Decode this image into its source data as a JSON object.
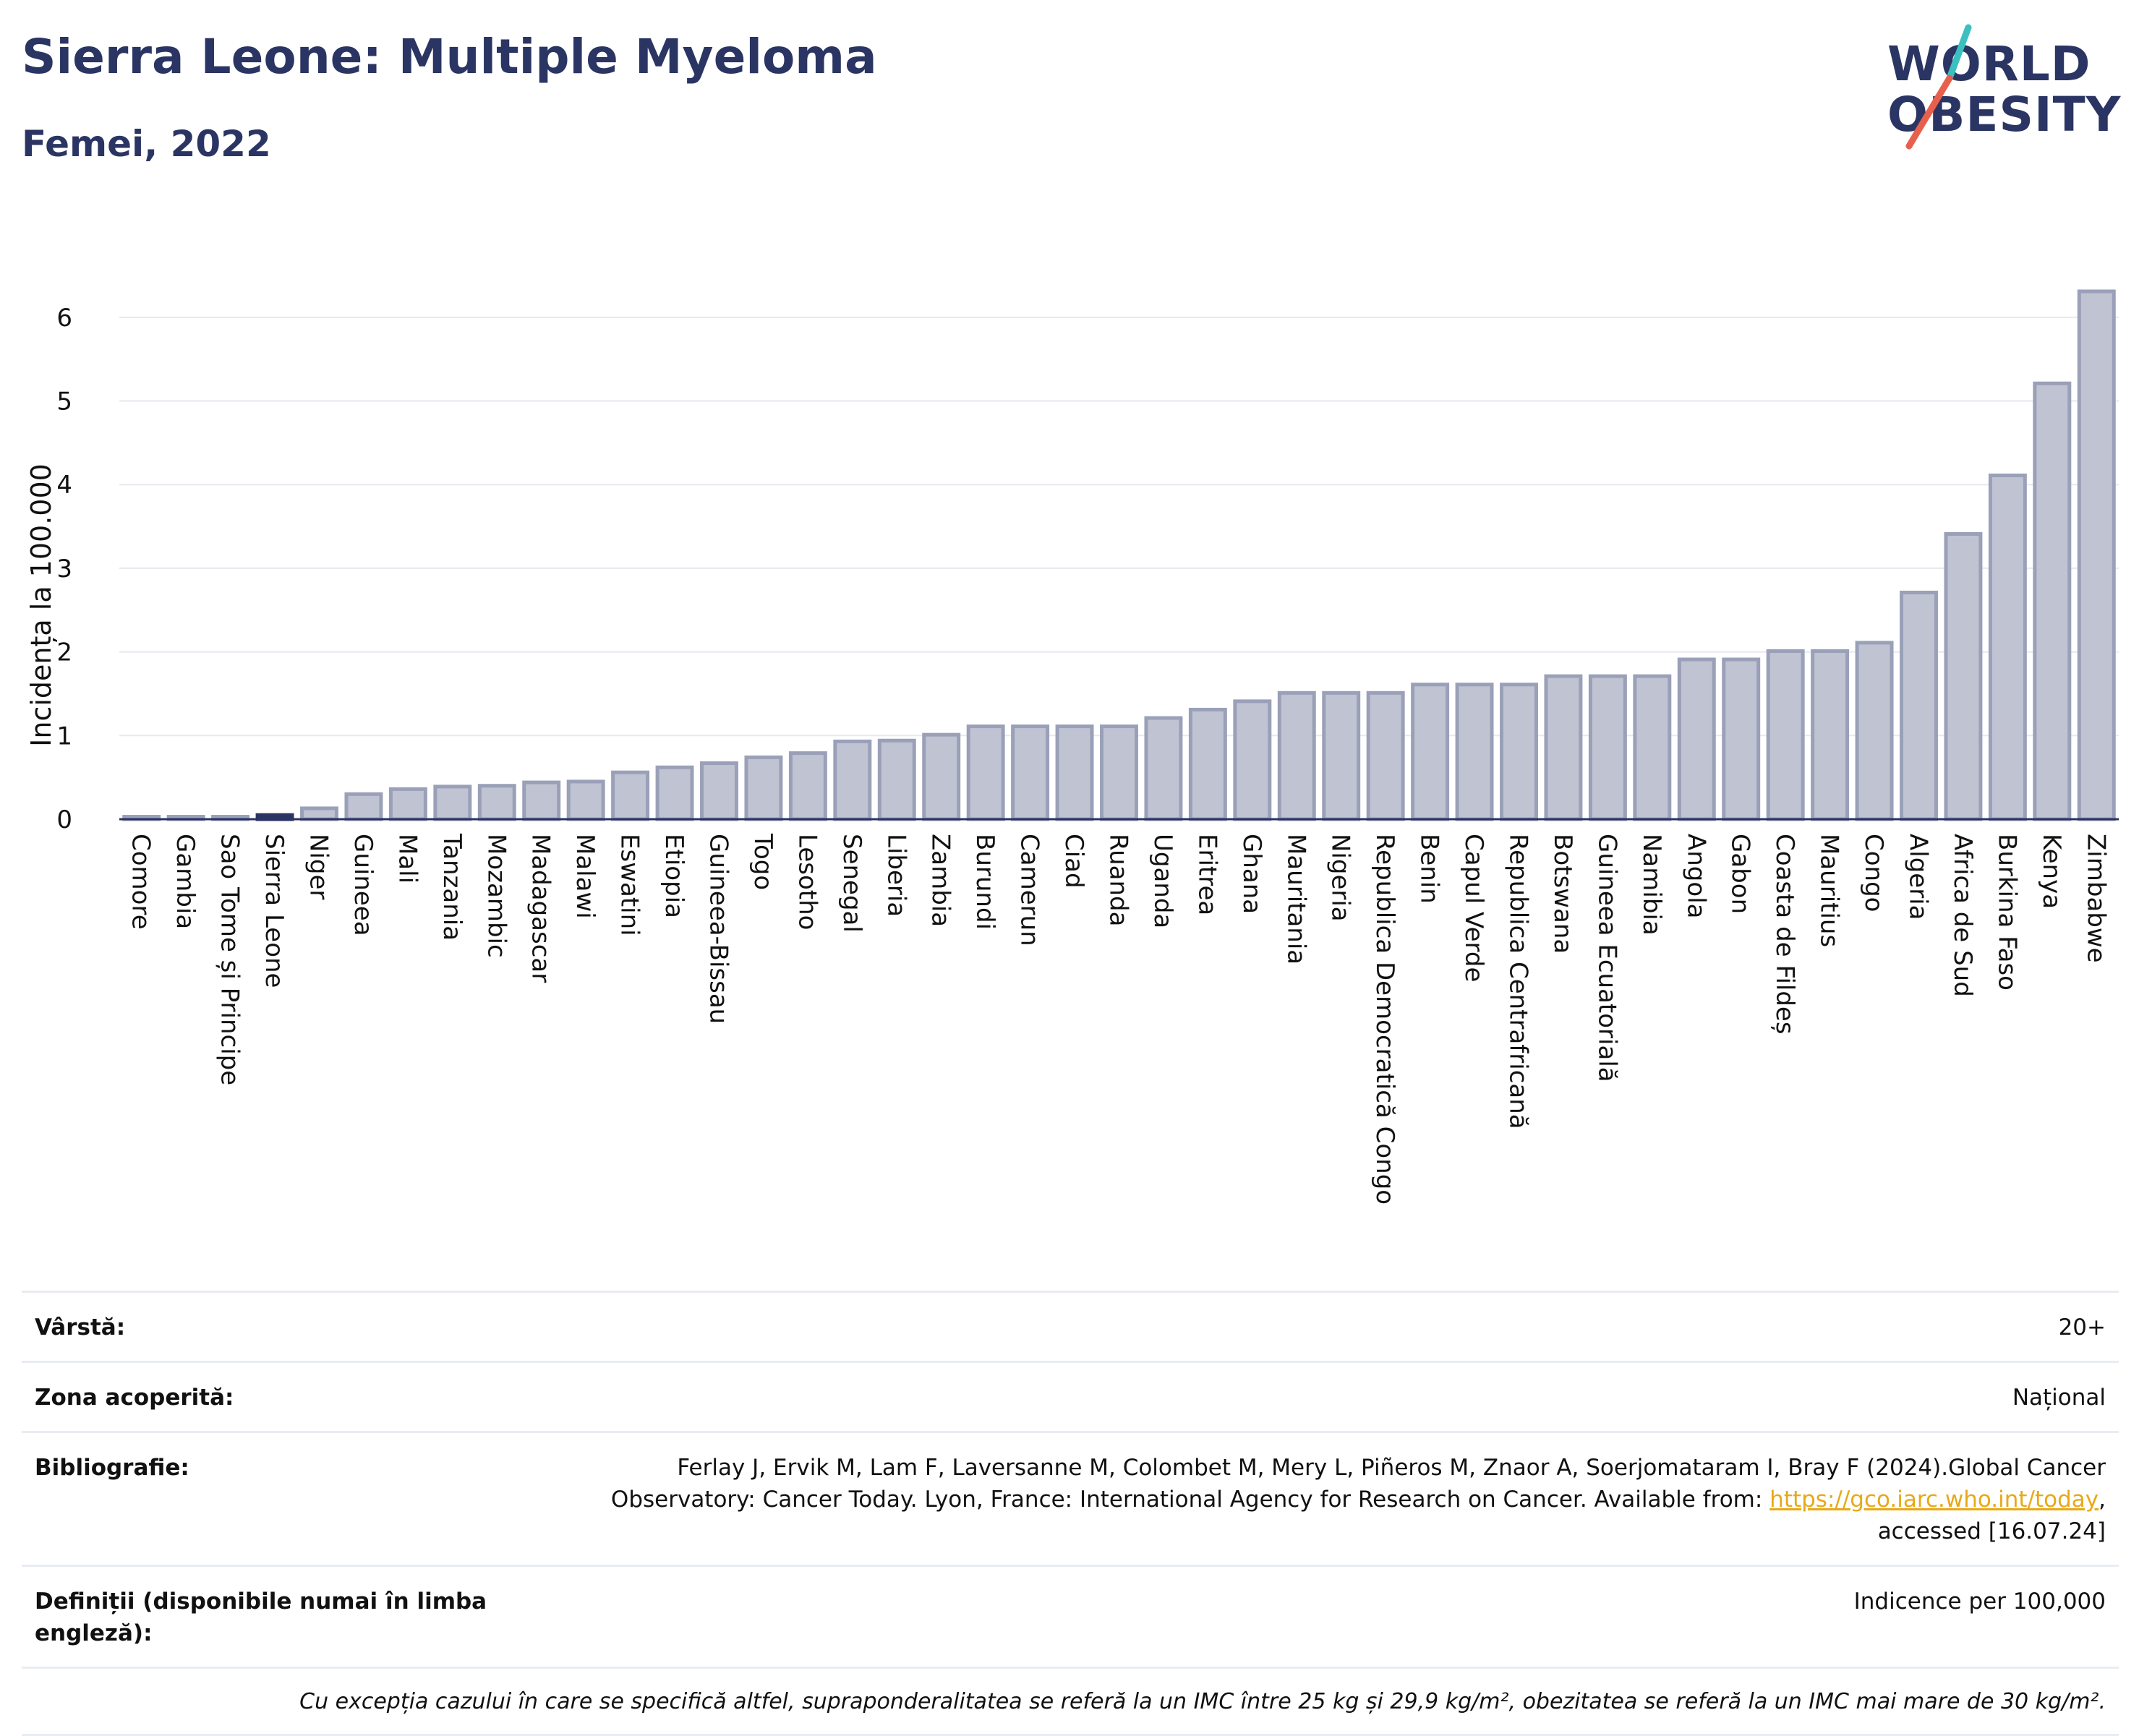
{
  "header": {
    "title": "Sierra Leone: Multiple Myeloma",
    "subtitle": "Femei, 2022"
  },
  "logo": {
    "line1": "WORLD",
    "line2": "OBESITY",
    "colors": {
      "text": "#2a3563",
      "slash_top": "#3bbfbf",
      "slash_bottom": "#e8604c"
    }
  },
  "chart_data": {
    "type": "bar",
    "ylabel": "Incidența la 100.000",
    "ylim": [
      0,
      6.5
    ],
    "yticks": [
      0,
      1,
      2,
      3,
      4,
      5,
      6
    ],
    "grid": true,
    "highlight": "Sierra Leone",
    "colors": {
      "bar": "#bfc3d2",
      "bar_edge": "#9aa0b8",
      "highlight": "#2a3563"
    },
    "categories": [
      "Comore",
      "Gambia",
      "Sao Tome și Principe",
      "Sierra Leone",
      "Niger",
      "Guineea",
      "Mali",
      "Tanzania",
      "Mozambic",
      "Madagascar",
      "Malawi",
      "Eswatini",
      "Etiopia",
      "Guineea-Bissau",
      "Togo",
      "Lesotho",
      "Senegal",
      "Liberia",
      "Zambia",
      "Burundi",
      "Camerun",
      "Ciad",
      "Ruanda",
      "Uganda",
      "Eritrea",
      "Ghana",
      "Mauritania",
      "Nigeria",
      "Republica Democratică Congo",
      "Benin",
      "Capul Verde",
      "Republica Centrafricană",
      "Botswana",
      "Guineea Ecuatorială",
      "Namibia",
      "Angola",
      "Gabon",
      "Coasta de Fildeș",
      "Mauritius",
      "Congo",
      "Algeria",
      "Africa de Sud",
      "Burkina Faso",
      "Kenya",
      "Zimbabwe"
    ],
    "values": [
      0.03,
      0.03,
      0.03,
      0.05,
      0.13,
      0.3,
      0.36,
      0.39,
      0.4,
      0.44,
      0.45,
      0.56,
      0.62,
      0.67,
      0.74,
      0.79,
      0.93,
      0.94,
      1.01,
      1.11,
      1.11,
      1.11,
      1.11,
      1.21,
      1.31,
      1.41,
      1.51,
      1.51,
      1.51,
      1.61,
      1.61,
      1.61,
      1.71,
      1.71,
      1.71,
      1.91,
      1.91,
      2.01,
      2.01,
      2.11,
      2.71,
      3.41,
      4.11,
      5.21,
      6.31
    ]
  },
  "meta": {
    "age_label": "Vârstă:",
    "age_value": "20+",
    "area_label": "Zona acoperită:",
    "area_value": "Național",
    "bib_label": "Bibliografie:",
    "bib_text": "Ferlay J, Ervik M, Lam F, Laversanne M, Colombet M, Mery L, Piñeros M, Znaor A, Soerjomataram I, Bray F (2024).Global Cancer Observatory: Cancer Today. Lyon, France: International Agency for Research on Cancer. Available from: ",
    "bib_link": "https://gco.iarc.who.int/today",
    "bib_suffix": ", accessed [16.07.24]",
    "def_label": "Definiții (disponibile numai în limba engleză):",
    "def_value": "Indicence per 100,000",
    "footnote": "Cu excepția cazului în care se specifică altfel, supraponderalitatea se referă la un IMC între 25 kg și 29,9 kg/m², obezitatea se referă la un IMC mai mare de 30 kg/m²."
  }
}
